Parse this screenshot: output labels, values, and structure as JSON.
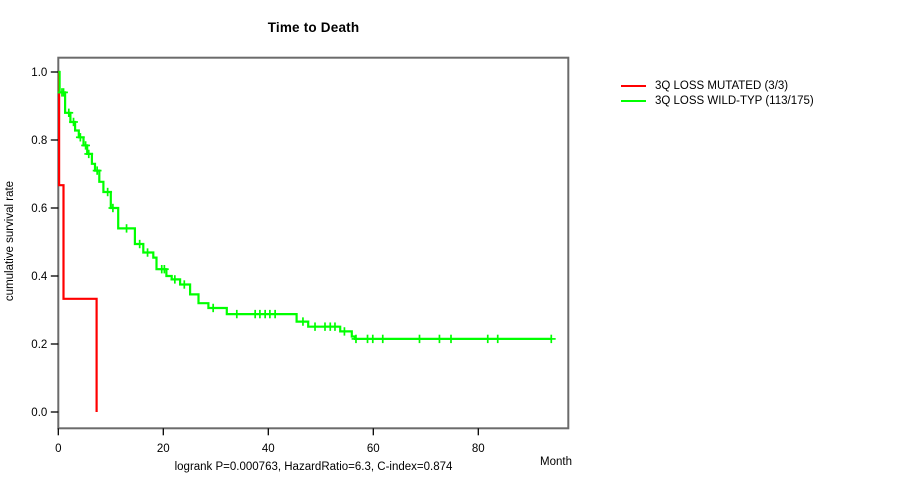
{
  "chart_data": {
    "type": "line",
    "subtype": "kaplan-meier-step",
    "title": "Time to Death",
    "xlabel": "Month",
    "ylabel": "cumulative survival rate",
    "footer": "logrank P=0.000763, HazardRatio=6.3, C-index=0.874",
    "xlim": [
      0,
      97
    ],
    "ylim": [
      0.0,
      1.0
    ],
    "xticks": [
      0,
      20,
      40,
      60,
      80
    ],
    "yticks": [
      0.0,
      0.2,
      0.4,
      0.6,
      0.8,
      1.0
    ],
    "grid": false,
    "legend_position": "outside-top-right",
    "box_color": "#6b6b6b",
    "tick_color": "#000000",
    "series": [
      {
        "name": "3Q LOSS MUTATED (3/3)",
        "color": "#ff0000",
        "steps": [
          [
            0,
            1.0
          ],
          [
            0.15,
            0.667
          ],
          [
            1.0,
            0.333
          ],
          [
            7.3,
            0.0
          ]
        ],
        "end": 7.3,
        "censors": []
      },
      {
        "name": "3Q LOSS WILD-TYP (113/175)",
        "color": "#00ff00",
        "steps": [
          [
            0,
            1.0
          ],
          [
            0.25,
            0.94
          ],
          [
            1.3,
            0.88
          ],
          [
            2.3,
            0.853
          ],
          [
            3.2,
            0.828
          ],
          [
            3.9,
            0.808
          ],
          [
            4.8,
            0.784
          ],
          [
            5.5,
            0.759
          ],
          [
            6.4,
            0.73
          ],
          [
            7.0,
            0.71
          ],
          [
            7.8,
            0.677
          ],
          [
            8.6,
            0.647
          ],
          [
            10.0,
            0.6
          ],
          [
            11.4,
            0.54
          ],
          [
            14.6,
            0.494
          ],
          [
            16.2,
            0.469
          ],
          [
            18.1,
            0.454
          ],
          [
            18.7,
            0.42
          ],
          [
            20.6,
            0.4
          ],
          [
            21.6,
            0.39
          ],
          [
            23.2,
            0.375
          ],
          [
            25.1,
            0.346
          ],
          [
            26.7,
            0.32
          ],
          [
            28.6,
            0.306
          ],
          [
            32.1,
            0.288
          ],
          [
            45.4,
            0.266
          ],
          [
            47.6,
            0.251
          ],
          [
            53.7,
            0.237
          ],
          [
            55.9,
            0.222
          ],
          [
            56.5,
            0.215
          ]
        ],
        "end": 93.9,
        "censors": [
          0.7,
          1.0,
          2.0,
          2.9,
          4.2,
          5.2,
          5.8,
          7.4,
          9.4,
          10.4,
          13.0,
          15.5,
          17.0,
          19.7,
          20.2,
          22.2,
          24.0,
          29.5,
          34.0,
          37.5,
          38.4,
          39.4,
          40.3,
          41.3,
          46.6,
          48.9,
          50.8,
          51.8,
          52.7,
          54.5,
          56.7,
          58.9,
          59.9,
          61.8,
          68.8,
          72.6,
          74.8,
          81.8,
          83.7,
          93.9
        ]
      }
    ]
  }
}
